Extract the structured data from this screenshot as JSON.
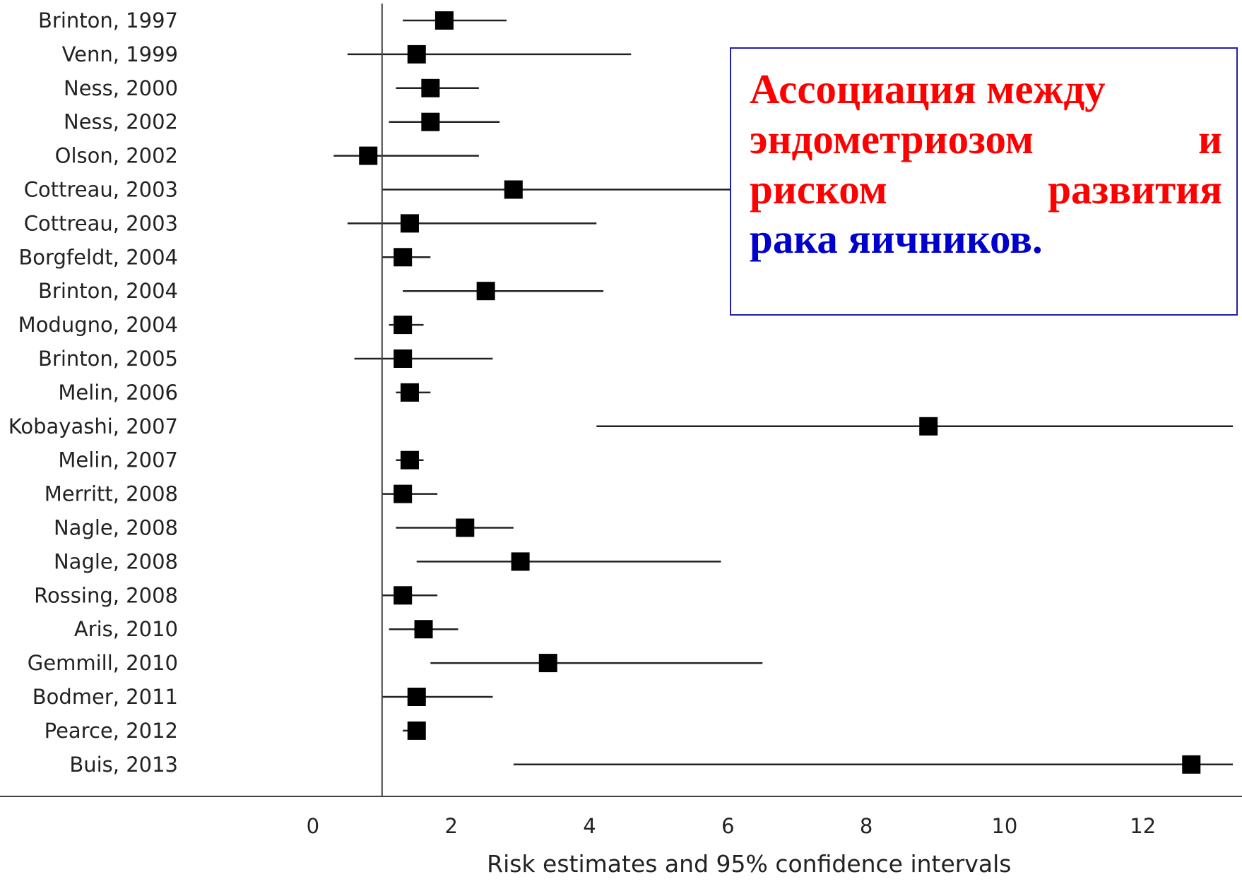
{
  "chart_data": {
    "type": "forest",
    "xlabel": "Risk estimates and 95% confidence intervals",
    "xlim": [
      -1.0,
      13.3
    ],
    "xticks": [
      0,
      2,
      4,
      6,
      8,
      10,
      12
    ],
    "reference_line": 1,
    "studies": [
      {
        "label": "Brinton, 1997",
        "estimate": 1.9,
        "lower": 1.3,
        "upper": 2.8
      },
      {
        "label": "Venn, 1999",
        "estimate": 1.5,
        "lower": 0.5,
        "upper": 4.6
      },
      {
        "label": "Ness, 2000",
        "estimate": 1.7,
        "lower": 1.2,
        "upper": 2.4
      },
      {
        "label": "Ness, 2002",
        "estimate": 1.7,
        "lower": 1.1,
        "upper": 2.7
      },
      {
        "label": "Olson, 2002",
        "estimate": 0.8,
        "lower": 0.3,
        "upper": 2.4
      },
      {
        "label": "Cottreau, 2003",
        "estimate": 2.9,
        "lower": 1.0,
        "upper": 8.0
      },
      {
        "label": "Cottreau, 2003",
        "estimate": 1.4,
        "lower": 0.5,
        "upper": 4.1
      },
      {
        "label": "Borgfeldt, 2004",
        "estimate": 1.3,
        "lower": 1.0,
        "upper": 1.7
      },
      {
        "label": "Brinton, 2004",
        "estimate": 2.5,
        "lower": 1.3,
        "upper": 4.2
      },
      {
        "label": "Modugno, 2004",
        "estimate": 1.3,
        "lower": 1.1,
        "upper": 1.6
      },
      {
        "label": "Brinton, 2005",
        "estimate": 1.3,
        "lower": 0.6,
        "upper": 2.6
      },
      {
        "label": "Melin, 2006",
        "estimate": 1.4,
        "lower": 1.2,
        "upper": 1.7
      },
      {
        "label": "Kobayashi, 2007",
        "estimate": 8.9,
        "lower": 4.1,
        "upper": 13.3
      },
      {
        "label": "Melin, 2007",
        "estimate": 1.4,
        "lower": 1.2,
        "upper": 1.6
      },
      {
        "label": "Merritt, 2008",
        "estimate": 1.3,
        "lower": 1.0,
        "upper": 1.8
      },
      {
        "label": "Nagle, 2008",
        "estimate": 2.2,
        "lower": 1.2,
        "upper": 2.9
      },
      {
        "label": "Nagle, 2008",
        "estimate": 3.0,
        "lower": 1.5,
        "upper": 5.9
      },
      {
        "label": "Rossing, 2008",
        "estimate": 1.3,
        "lower": 1.0,
        "upper": 1.8
      },
      {
        "label": "Aris, 2010",
        "estimate": 1.6,
        "lower": 1.1,
        "upper": 2.1
      },
      {
        "label": "Gemmill, 2010",
        "estimate": 3.4,
        "lower": 1.7,
        "upper": 6.5
      },
      {
        "label": "Bodmer, 2011",
        "estimate": 1.5,
        "lower": 1.0,
        "upper": 2.6
      },
      {
        "label": "Pearce, 2012",
        "estimate": 1.5,
        "lower": 1.3,
        "upper": 1.6
      },
      {
        "label": "Buis, 2013",
        "estimate": 12.7,
        "lower": 2.9,
        "upper": 13.3
      }
    ]
  },
  "callout": {
    "line1": "Ассоциация между",
    "line2": "эндометриозом и",
    "line3": "риском развития",
    "line4": "рака яичников."
  },
  "colors": {
    "callout_red": "#ff0000",
    "callout_blue": "#0000cc",
    "callout_border": "#2020b0",
    "marker": "#000000"
  }
}
